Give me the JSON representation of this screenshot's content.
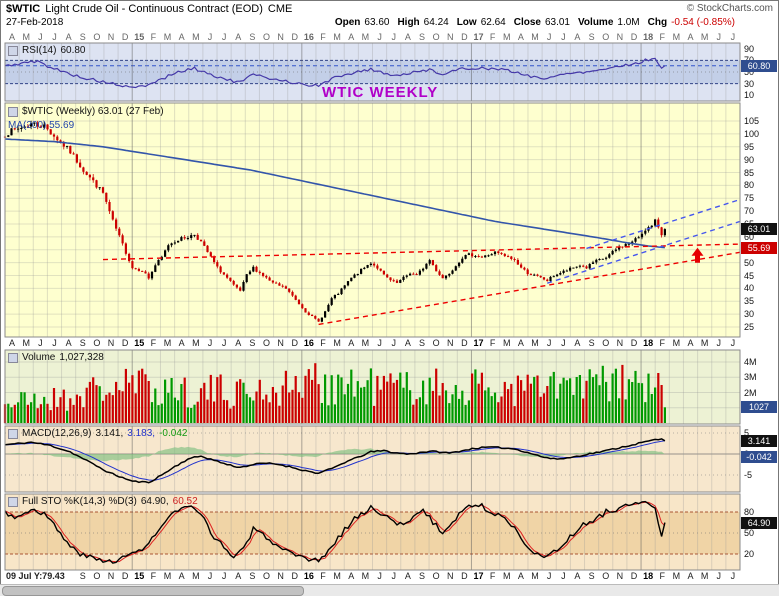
{
  "header": {
    "symbol": "$WTIC",
    "title": "Light Crude Oil - Continuous Contract (EOD)",
    "exchange": "CME",
    "copyright": "© StockCharts.com",
    "date": "27-Feb-2018",
    "quote": {
      "open_l": "Open",
      "open_v": "63.60",
      "high_l": "High",
      "high_v": "64.24",
      "low_l": "Low",
      "low_v": "62.64",
      "close_l": "Close",
      "close_v": "63.01",
      "vol_l": "Volume",
      "vol_v": "1.0M",
      "chg_l": "Chg",
      "chg_v": "-0.54 (-0.85%)"
    }
  },
  "panels": {
    "rsi": {
      "label": "RSI(14)",
      "value": "60.80"
    },
    "price": {
      "title": "$WTIC (Weekly) 63.01 (27 Feb)",
      "ma": "MA(200) 55.69"
    },
    "volume": {
      "label": "Volume",
      "value": "1,027,328"
    },
    "macd": {
      "label": "MACD(12,26,9)",
      "v1": "3.141,",
      "v2": "3.183,",
      "v3": "-0.042"
    },
    "sto": {
      "label": "Full STO %K(14,3) %D(3)",
      "k": "64.90,",
      "d": "60.52"
    }
  },
  "annotations": {
    "watermark": "WTIC WEEKLY",
    "bottom_left": "09 Jul Y:79.43"
  },
  "chart_data": {
    "type": "candlestick-multi-panel",
    "x_unit": "week",
    "total_weeks": 225,
    "data_weeks": 203,
    "months": [
      "A",
      "M",
      "J",
      "J",
      "A",
      "S",
      "O",
      "N",
      "D",
      "15",
      "F",
      "M",
      "A",
      "M",
      "J",
      "J",
      "A",
      "S",
      "O",
      "N",
      "D",
      "16",
      "F",
      "M",
      "A",
      "M",
      "J",
      "J",
      "A",
      "S",
      "O",
      "N",
      "D",
      "17",
      "F",
      "M",
      "A",
      "M",
      "J",
      "J",
      "A",
      "S",
      "O",
      "N",
      "D",
      "18",
      "F",
      "M",
      "A",
      "M",
      "J",
      "J"
    ],
    "bottom_axis_start_index": 5,
    "price": {
      "ylim": [
        25,
        105
      ],
      "tick_step": 5,
      "last_close": 63.01,
      "ma_last": 55.69,
      "close_keyframes": [
        [
          0,
          100
        ],
        [
          4,
          102
        ],
        [
          8,
          104
        ],
        [
          12,
          103
        ],
        [
          16,
          98
        ],
        [
          20,
          93
        ],
        [
          24,
          86
        ],
        [
          28,
          80
        ],
        [
          30,
          77
        ],
        [
          33,
          66
        ],
        [
          36,
          57
        ],
        [
          39,
          48
        ],
        [
          42,
          47
        ],
        [
          44,
          44
        ],
        [
          46,
          49
        ],
        [
          48,
          52
        ],
        [
          50,
          57
        ],
        [
          53,
          59
        ],
        [
          56,
          60
        ],
        [
          58,
          61
        ],
        [
          60,
          58
        ],
        [
          63,
          52
        ],
        [
          65,
          48
        ],
        [
          68,
          44
        ],
        [
          70,
          41
        ],
        [
          72,
          39
        ],
        [
          74,
          45
        ],
        [
          76,
          48
        ],
        [
          78,
          46
        ],
        [
          80,
          44
        ],
        [
          82,
          42
        ],
        [
          84,
          41
        ],
        [
          86,
          40
        ],
        [
          88,
          37
        ],
        [
          90,
          34
        ],
        [
          92,
          31
        ],
        [
          94,
          29
        ],
        [
          96,
          27
        ],
        [
          98,
          31
        ],
        [
          100,
          36
        ],
        [
          102,
          38
        ],
        [
          104,
          41
        ],
        [
          106,
          44
        ],
        [
          108,
          46
        ],
        [
          110,
          48
        ],
        [
          112,
          50
        ],
        [
          114,
          48
        ],
        [
          116,
          45
        ],
        [
          118,
          43
        ],
        [
          120,
          42
        ],
        [
          122,
          44
        ],
        [
          124,
          46
        ],
        [
          126,
          45
        ],
        [
          128,
          48
        ],
        [
          130,
          51
        ],
        [
          132,
          47
        ],
        [
          134,
          44
        ],
        [
          136,
          46
        ],
        [
          138,
          49
        ],
        [
          140,
          52
        ],
        [
          142,
          53
        ],
        [
          144,
          53
        ],
        [
          146,
          52
        ],
        [
          148,
          53
        ],
        [
          150,
          54
        ],
        [
          152,
          53
        ],
        [
          154,
          52
        ],
        [
          156,
          51
        ],
        [
          158,
          48
        ],
        [
          160,
          46
        ],
        [
          162,
          45
        ],
        [
          164,
          44
        ],
        [
          166,
          43
        ],
        [
          168,
          45
        ],
        [
          170,
          46
        ],
        [
          172,
          47
        ],
        [
          174,
          48
        ],
        [
          176,
          49
        ],
        [
          178,
          48
        ],
        [
          180,
          50
        ],
        [
          182,
          51
        ],
        [
          184,
          52
        ],
        [
          186,
          54
        ],
        [
          188,
          56
        ],
        [
          190,
          57
        ],
        [
          192,
          58
        ],
        [
          194,
          60
        ],
        [
          196,
          63
        ],
        [
          198,
          64
        ],
        [
          199,
          66
        ],
        [
          200,
          64
        ],
        [
          201,
          61
        ],
        [
          202,
          59
        ],
        [
          203,
          63.01
        ]
      ],
      "ma200_keyframes": [
        [
          0,
          98
        ],
        [
          15,
          97
        ],
        [
          30,
          95
        ],
        [
          45,
          92
        ],
        [
          60,
          89
        ],
        [
          75,
          86
        ],
        [
          90,
          82
        ],
        [
          105,
          78
        ],
        [
          120,
          74
        ],
        [
          135,
          70
        ],
        [
          150,
          66
        ],
        [
          165,
          63
        ],
        [
          180,
          60
        ],
        [
          190,
          57.8
        ],
        [
          196,
          56.6
        ],
        [
          203,
          55.69
        ]
      ]
    },
    "rsi": {
      "ylim": [
        0,
        100
      ],
      "ticks": [
        90,
        70,
        50,
        30,
        10
      ],
      "band": [
        30,
        70
      ],
      "last": 60.8,
      "keyframes": [
        [
          0,
          60
        ],
        [
          6,
          66
        ],
        [
          10,
          68
        ],
        [
          14,
          58
        ],
        [
          18,
          50
        ],
        [
          24,
          40
        ],
        [
          30,
          33
        ],
        [
          36,
          26
        ],
        [
          39,
          22
        ],
        [
          44,
          28
        ],
        [
          48,
          38
        ],
        [
          52,
          48
        ],
        [
          56,
          54
        ],
        [
          58,
          56
        ],
        [
          62,
          48
        ],
        [
          66,
          40
        ],
        [
          70,
          34
        ],
        [
          72,
          32
        ],
        [
          74,
          40
        ],
        [
          76,
          45
        ],
        [
          80,
          40
        ],
        [
          84,
          37
        ],
        [
          88,
          32
        ],
        [
          92,
          28
        ],
        [
          96,
          26
        ],
        [
          100,
          38
        ],
        [
          104,
          46
        ],
        [
          108,
          50
        ],
        [
          112,
          55
        ],
        [
          116,
          48
        ],
        [
          120,
          44
        ],
        [
          124,
          48
        ],
        [
          128,
          52
        ],
        [
          130,
          55
        ],
        [
          134,
          46
        ],
        [
          138,
          52
        ],
        [
          140,
          56
        ],
        [
          144,
          57
        ],
        [
          148,
          56
        ],
        [
          152,
          54
        ],
        [
          156,
          50
        ],
        [
          160,
          44
        ],
        [
          164,
          40
        ],
        [
          166,
          38
        ],
        [
          170,
          45
        ],
        [
          174,
          50
        ],
        [
          178,
          50
        ],
        [
          182,
          54
        ],
        [
          186,
          58
        ],
        [
          190,
          62
        ],
        [
          194,
          66
        ],
        [
          196,
          70
        ],
        [
          199,
          74
        ],
        [
          201,
          58
        ],
        [
          203,
          60.8
        ]
      ]
    },
    "volume": {
      "ylim": [
        0,
        4200000
      ],
      "last": 1027328,
      "ticks": [
        [
          4000000,
          "4M"
        ],
        [
          3000000,
          "3M"
        ],
        [
          2000000,
          "2M"
        ],
        [
          1000000,
          "1M"
        ]
      ],
      "keyframes": [
        [
          0,
          1300000
        ],
        [
          20,
          1600000
        ],
        [
          30,
          2200000
        ],
        [
          40,
          2400000
        ],
        [
          60,
          2000000
        ],
        [
          80,
          2100000
        ],
        [
          96,
          2600000
        ],
        [
          110,
          2400000
        ],
        [
          130,
          2300000
        ],
        [
          150,
          2200000
        ],
        [
          170,
          2300000
        ],
        [
          190,
          2500000
        ],
        [
          200,
          2200000
        ],
        [
          203,
          1027328
        ]
      ]
    },
    "macd": {
      "ylim": [
        -9,
        6
      ],
      "ticks": [
        5,
        0,
        -5
      ],
      "last_macd": 3.141,
      "last_signal": 3.183,
      "last_hist": -0.042,
      "keyframes": [
        [
          0,
          2.2
        ],
        [
          8,
          2.8
        ],
        [
          14,
          2
        ],
        [
          20,
          0.5
        ],
        [
          26,
          -2
        ],
        [
          32,
          -4.5
        ],
        [
          39,
          -6.5
        ],
        [
          44,
          -6.8
        ],
        [
          48,
          -5
        ],
        [
          52,
          -3
        ],
        [
          56,
          -1.2
        ],
        [
          60,
          -0.5
        ],
        [
          64,
          -1.5
        ],
        [
          68,
          -2.5
        ],
        [
          72,
          -3.2
        ],
        [
          76,
          -2.5
        ],
        [
          80,
          -2.2
        ],
        [
          84,
          -2.5
        ],
        [
          88,
          -3.2
        ],
        [
          92,
          -4
        ],
        [
          96,
          -4.6
        ],
        [
          100,
          -3.5
        ],
        [
          104,
          -2
        ],
        [
          108,
          -0.8
        ],
        [
          112,
          0.5
        ],
        [
          116,
          0.8
        ],
        [
          120,
          0.2
        ],
        [
          124,
          0
        ],
        [
          128,
          0.5
        ],
        [
          132,
          0.6
        ],
        [
          136,
          0.2
        ],
        [
          140,
          0.8
        ],
        [
          144,
          1.4
        ],
        [
          148,
          1.6
        ],
        [
          152,
          1.5
        ],
        [
          156,
          1.2
        ],
        [
          160,
          0.4
        ],
        [
          164,
          -0.6
        ],
        [
          168,
          -1.2
        ],
        [
          172,
          -1
        ],
        [
          176,
          -0.4
        ],
        [
          180,
          0.2
        ],
        [
          184,
          0.8
        ],
        [
          188,
          1.5
        ],
        [
          192,
          2.2
        ],
        [
          196,
          2.9
        ],
        [
          199,
          3.4
        ],
        [
          201,
          3.5
        ],
        [
          203,
          3.141
        ]
      ]
    },
    "sto": {
      "ylim": [
        0,
        100
      ],
      "ticks": [
        80,
        50,
        20
      ],
      "band": [
        20,
        80
      ],
      "k_last": 64.9,
      "d_last": 60.52,
      "keyframes": [
        [
          0,
          80
        ],
        [
          4,
          72
        ],
        [
          8,
          85
        ],
        [
          12,
          78
        ],
        [
          16,
          55
        ],
        [
          20,
          30
        ],
        [
          24,
          18
        ],
        [
          28,
          12
        ],
        [
          32,
          10
        ],
        [
          36,
          14
        ],
        [
          40,
          22
        ],
        [
          44,
          35
        ],
        [
          48,
          60
        ],
        [
          52,
          80
        ],
        [
          56,
          88
        ],
        [
          60,
          75
        ],
        [
          64,
          45
        ],
        [
          68,
          25
        ],
        [
          70,
          15
        ],
        [
          74,
          35
        ],
        [
          76,
          55
        ],
        [
          80,
          45
        ],
        [
          84,
          28
        ],
        [
          88,
          18
        ],
        [
          92,
          12
        ],
        [
          96,
          10
        ],
        [
          100,
          30
        ],
        [
          104,
          55
        ],
        [
          108,
          75
        ],
        [
          112,
          85
        ],
        [
          116,
          78
        ],
        [
          120,
          60
        ],
        [
          124,
          70
        ],
        [
          128,
          82
        ],
        [
          132,
          60
        ],
        [
          134,
          50
        ],
        [
          138,
          70
        ],
        [
          140,
          85
        ],
        [
          144,
          90
        ],
        [
          146,
          88
        ],
        [
          150,
          78
        ],
        [
          152,
          72
        ],
        [
          156,
          60
        ],
        [
          158,
          45
        ],
        [
          160,
          30
        ],
        [
          164,
          18
        ],
        [
          166,
          14
        ],
        [
          170,
          30
        ],
        [
          174,
          50
        ],
        [
          176,
          58
        ],
        [
          180,
          68
        ],
        [
          184,
          80
        ],
        [
          188,
          86
        ],
        [
          192,
          90
        ],
        [
          196,
          92
        ],
        [
          198,
          90
        ],
        [
          199,
          85
        ],
        [
          200,
          60
        ],
        [
          201,
          45
        ],
        [
          202,
          52
        ],
        [
          203,
          64.9
        ]
      ]
    },
    "trendlines": [
      {
        "name": "wedge-upper",
        "color": "#ee0000",
        "dash": true,
        "from": [
          30,
          51.2
        ],
        "to": [
          225,
          57.2
        ]
      },
      {
        "name": "wedge-lower",
        "color": "#ee0000",
        "dash": true,
        "from": [
          96,
          26
        ],
        "to": [
          225,
          54
        ]
      },
      {
        "name": "channel-lower",
        "color": "#4455ee",
        "dash": true,
        "from": [
          166,
          42
        ],
        "to": [
          225,
          66
        ]
      },
      {
        "name": "channel-upper",
        "color": "#4455ee",
        "dash": true,
        "from": [
          178,
          55.5
        ],
        "to": [
          225,
          74.5
        ]
      }
    ],
    "arrow": {
      "week": 212,
      "price": 51.5,
      "color": "#e60000"
    },
    "value_boxes": [
      {
        "panel": "rsi",
        "value": 60.8,
        "text": "60.80",
        "bg": "#2f4d8f"
      },
      {
        "panel": "price",
        "value": 63.01,
        "text": "63.01",
        "bg": "#111111"
      },
      {
        "panel": "price",
        "value": 55.69,
        "text": "55.69",
        "bg": "#cc0000"
      },
      {
        "panel": "vol",
        "value": 1027328,
        "text": "1027",
        "bg": "#2f4d8f"
      },
      {
        "panel": "macd",
        "value": 3.141,
        "text": "3.141",
        "bg": "#111111"
      },
      {
        "panel": "macd",
        "value": -0.7,
        "text": "-0.042",
        "bg": "#2f4d8f"
      },
      {
        "panel": "sto",
        "value": 64.9,
        "text": "64.90",
        "bg": "#111111"
      }
    ],
    "colors": {
      "up": "#000000",
      "down": "#cc0000",
      "volume_up": "#009900",
      "volume_down": "#cc0000",
      "ma": "#3355aa",
      "rsi": "#4438a8",
      "macd": "#000000",
      "signal": "#2233cc",
      "hist": "#7fbf7f",
      "k": "#000000",
      "d": "#dd2222",
      "bg_rsi": "#dde3f2",
      "band_rsi": "#c3cfe8",
      "bg_price": "#feffcf",
      "bg_vol": "#edf2d4",
      "bg_macd": "#f7e7cd",
      "bg_sto": "#f8e6c8",
      "band_sto": "#f0d4a6"
    }
  }
}
